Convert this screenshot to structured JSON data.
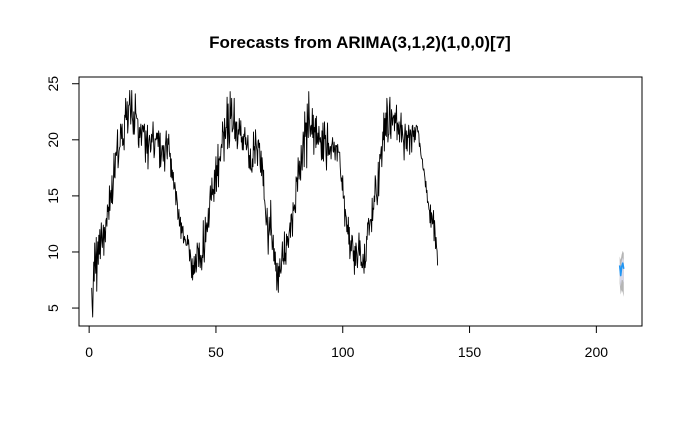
{
  "chart_data": {
    "type": "line",
    "title": "Forecasts from ARIMA(3,1,2)(1,0,0)[7]",
    "xlabel": "",
    "ylabel": "",
    "xlim": [
      -4,
      218
    ],
    "ylim": [
      3.4,
      25.6
    ],
    "x_ticks": [
      0,
      50,
      100,
      150,
      200
    ],
    "y_ticks": [
      5,
      10,
      15,
      20,
      25
    ],
    "grid": false,
    "legend": "none",
    "series": [
      {
        "color": "#000000",
        "x_start": 1,
        "x_step": 0.2,
        "values": [
          6.8,
          5.2,
          4.2,
          6.9,
          9.1,
          7.4,
          10.8,
          9.0,
          8.1,
          11.3,
          6.5,
          9.7,
          10.9,
          8.9,
          11.5,
          9.8,
          12.0,
          9.4,
          11.2,
          12.6,
          11.0,
          10.4,
          11.5,
          12.4,
          9.7,
          12.2,
          11.6,
          10.9,
          12.8,
          13.0,
          12.3,
          14.2,
          13.6,
          14.0,
          12.9,
          15.9,
          13.7,
          15.2,
          15.5,
          14.4,
          16.8,
          14.3,
          15.2,
          16.6,
          18.8,
          16.7,
          16.6,
          18.8,
          18.9,
          18.6,
          19.6,
          20.9,
          17.5,
          18.1,
          19.0,
          19.3,
          19.4,
          21.4,
          21.0,
          20.1,
          21.4,
          19.5,
          19.6,
          20.1,
          19.1,
          22.2,
          22.0,
          23.7,
          21.8,
          21.8,
          23.4,
          20.6,
          21.4,
          23.1,
          23.1,
          24.4,
          23.0,
          21.4,
          22.5,
          24.4,
          22.0,
          21.6,
          20.5,
          22.5,
          20.5,
          21.3,
          24.1,
          22.4,
          22.2,
          21.9,
          21.9,
          21.8,
          19.6,
          19.3,
          21.1,
          20.2,
          20.8,
          21.4,
          19.5,
          20.5,
          21.3,
          21.2,
          20.7,
          21.2,
          21.4,
          19.9,
          18.0,
          20.8,
          19.8,
          18.8,
          21.3,
          17.4,
          19.3,
          20.0,
          20.4,
          19.9,
          18.9,
          19.2,
          20.5,
          19.8,
          20.4,
          21.6,
          20.0,
          18.4,
          18.8,
          20.1,
          20.0,
          20.0,
          20.6,
          20.1,
          20.6,
          19.4,
          20.8,
          20.2,
          17.5,
          20.6,
          17.6,
          18.3,
          19.0,
          19.5,
          19.4,
          18.1,
          19.5,
          18.6,
          17.2,
          19.4,
          19.9,
          20.8,
          19.0,
          18.3,
          20.1,
          19.6,
          20.5,
          19.0,
          18.5,
          18.8,
          16.7,
          18.3,
          16.6,
          17.3,
          16.4,
          17.1,
          15.6,
          15.7,
          16.2,
          15.6,
          14.2,
          15.4,
          14.8,
          14.3,
          12.9,
          13.1,
          13.8,
          12.3,
          12.5,
          13.1,
          11.2,
          12.6,
          11.7,
          12.2,
          12.3,
          10.8,
          11.0,
          11.4,
          11.1,
          11.1,
          10.6,
          10.6,
          10.6,
          11.5,
          10.7,
          11.1,
          10.4,
          9.2,
          10.2,
          9.7,
          9.0,
          7.7,
          9.4,
          7.5,
          8.8,
          8.0,
          9.6,
          8.1,
          8.8,
          9.8,
          8.2,
          8.7,
          10.8,
          10.4,
          10.3,
          8.7,
          10.8,
          9.5,
          8.6,
          9.7,
          9.4,
          8.4,
          9.7,
          9.5,
          12.8,
          10.0,
          9.1,
          10.5,
          13.1,
          10.9,
          12.3,
          12.6,
          11.8,
          12.3,
          13.9,
          12.2,
          13.1,
          14.9,
          15.9,
          14.7,
          14.6,
          16.6,
          15.1,
          15.6,
          15.5,
          14.5,
          17.3,
          15.2,
          17.0,
          18.5,
          15.4,
          17.7,
          16.8,
          19.6,
          15.8,
          18.3,
          18.2,
          18.5,
          18.1,
          19.3,
          19.6,
          19.3,
          21.6,
          20.8,
          20.6,
          18.1,
          21.9,
          20.5,
          20.1,
          21.1,
          21.1,
          23.8,
          19.2,
          23.2,
          20.8,
          19.3,
          19.9,
          24.3,
          21.9,
          22.3,
          23.7,
          20.7,
          20.9,
          21.0,
          21.8,
          23.7,
          20.1,
          21.6,
          19.9,
          21.5,
          21.6,
          19.2,
          19.7,
          20.9,
          20.5,
          21.9,
          21.0,
          20.4,
          21.7,
          19.8,
          20.2,
          19.1,
          20.3,
          19.1,
          20.5,
          20.3,
          21.1,
          19.6,
          20.2,
          19.1,
          19.3,
          19.7,
          20.4,
          18.8,
          17.5,
          18.6,
          17.4,
          19.2,
          17.3,
          17.4,
          17.1,
          18.3,
          17.6,
          20.7,
          19.1,
          19.4,
          17.9,
          20.9,
          19.8,
          19.3,
          19.0,
          17.7,
          19.9,
          20.0,
          19.3,
          19.7,
          17.8,
          17.1,
          19.0,
          16.8,
          18.4,
          17.6,
          15.9,
          17.3,
          14.7,
          14.6,
          14.1,
          13.3,
          12.4,
          12.8,
          13.9,
          11.7,
          9.8,
          11.8,
          13.1,
          11.9,
          11.5,
          14.6,
          12.2,
          11.5,
          10.2,
          10.6,
          11.5,
          9.2,
          10.3,
          8.9,
          10.0,
          8.3,
          9.0,
          6.6,
          7.7,
          9.0,
          6.4,
          8.7,
          7.8,
          9.4,
          8.3,
          8.1,
          8.5,
          9.8,
          10.9,
          9.2,
          9.4,
          8.9,
          11.8,
          9.2,
          9.9,
          8.9,
          11.6,
          10.6,
          11.4,
          11.1,
          10.4,
          11.6,
          12.0,
          12.6,
          11.3,
          13.3,
          13.4,
          12.6,
          11.4,
          14.4,
          13.7,
          13.9,
          14.2,
          13.6,
          13.5,
          16.7,
          16.3,
          16.6,
          15.4,
          18.4,
          17.6,
          16.5,
          18.1,
          17.0,
          16.4,
          19.5,
          18.2,
          17.3,
          19.1,
          20.7,
          20.2,
          17.6,
          22.5,
          20.3,
          21.5,
          21.5,
          17.5,
          23.2,
          21.4,
          20.2,
          24.3,
          22.0,
          21.1,
          20.3,
          21.2,
          21.3,
          20.5,
          22.8,
          20.2,
          22.2,
          18.7,
          21.1,
          20.7,
          21.9,
          19.3,
          22.1,
          19.6,
          19.8,
          20.6,
          19.6,
          21.2,
          20.1,
          19.8,
          20.2,
          19.6,
          18.2,
          20.8,
          18.3,
          21.5,
          18.1,
          19.7,
          21.6,
          20.1,
          20.4,
          18.6,
          17.3,
          19.9,
          21.5,
          18.6,
          19.7,
          18.7,
          18.7,
          19.4,
          19.4,
          18.3,
          19.5,
          19.7,
          20.2,
          19.0,
          18.9,
          19.8,
          19.1,
          18.2,
          19.5,
          19.4,
          19.5,
          18.1,
          19.6,
          18.9,
          18.9,
          18.9,
          18.9,
          17.6,
          16.8,
          16.3,
          16.6,
          15.5,
          16.8,
          14.8,
          14.8,
          15.0,
          12.3,
          13.8,
          13.3,
          13.1,
          11.8,
          12.4,
          11.6,
          13.1,
          10.7,
          12.2,
          9.4,
          10.0,
          11.0,
          10.1,
          11.5,
          11.4,
          10.6,
          9.2,
          10.1,
          8.0,
          10.5,
          8.8,
          10.8,
          10.4,
          9.1,
          8.6,
          9.8,
          10.3,
          11.7,
          9.7,
          11.0,
          10.0,
          8.8,
          9.1,
          8.6,
          8.6,
          9.8,
          9.0,
          8.1,
          10.7,
          8.6,
          9.1,
          9.2,
          11.4,
          11.1,
          12.6,
          12.5,
          13.0,
          11.5,
          12.3,
          12.8,
          12.9,
          12.9,
          11.8,
          14.8,
          12.8,
          13.9,
          13.8,
          15.0,
          14.5,
          16.8,
          16.4,
          15.2,
          14.9,
          14.2,
          14.9,
          18.0,
          15.0,
          17.0,
          18.7,
          18.3,
          18.8,
          19.4,
          17.6,
          19.3,
          20.7,
          20.0,
          22.4,
          19.0,
          21.9,
          20.4,
          22.4,
          20.3,
          23.7,
          22.9,
          19.8,
          20.4,
          20.5,
          23.0,
          23.8,
          20.6,
          20.1,
          22.7,
          22.3,
          21.3,
          21.9,
          22.1,
          22.2,
          20.8,
          22.4,
          21.5,
          22.1,
          23.1,
          20.0,
          21.5,
          21.3,
          20.5,
          21.6,
          19.8,
          20.7,
          21.4,
          22.4,
          19.8,
          21.3,
          20.6,
          20.1,
          19.8,
          18.2,
          20.4,
          21.4,
          20.4,
          19.2,
          20.8,
          19.0,
          20.4,
          20.2,
          21.3,
          20.5,
          18.7,
          20.9,
          20.8,
          20.3,
          18.9,
          21.2,
          21.3,
          20.3,
          20.8,
          19.8,
          21.1,
          20.0,
          20.8,
          21.3,
          21.2,
          21.2,
          20.7,
          20.8,
          20.5,
          19.4,
          19.7,
          19.3,
          18.7,
          18.4,
          18.3,
          18.3,
          17.5,
          17.3,
          17.4,
          17.0,
          16.6,
          15.8,
          16.3,
          15.3,
          15.5,
          14.4,
          14.5,
          14.3,
          13.8,
          13.7,
          12.6,
          14.2,
          12.2,
          13.5,
          13.2,
          12.5,
          12.6,
          13.7,
          11.0,
          12.8,
          11.8,
          10.3,
          11.3,
          10.4,
          10.1,
          8.8
        ]
      },
      {
        "color": "#2196f3",
        "x": [
          209.2,
          209.6,
          210.0,
          210.4,
          210.8
        ],
        "values": [
          8.8,
          7.9,
          8.7,
          9.0,
          8.5
        ]
      }
    ],
    "forecast_bands": [
      {
        "color": "#b5b5b5",
        "x": [
          209.2,
          209.6,
          210.0,
          210.4,
          210.8
        ],
        "lower": [
          7.2,
          6.2,
          6.6,
          6.4,
          6.0
        ],
        "upper": [
          9.6,
          9.3,
          9.8,
          10.1,
          9.9
        ]
      },
      {
        "color": "#d8d8e8",
        "x": [
          209.2,
          209.6,
          210.0,
          210.4,
          210.8
        ],
        "lower": [
          7.7,
          6.9,
          7.5,
          7.5,
          7.2
        ],
        "upper": [
          9.2,
          8.6,
          9.2,
          9.5,
          9.2
        ]
      }
    ]
  }
}
